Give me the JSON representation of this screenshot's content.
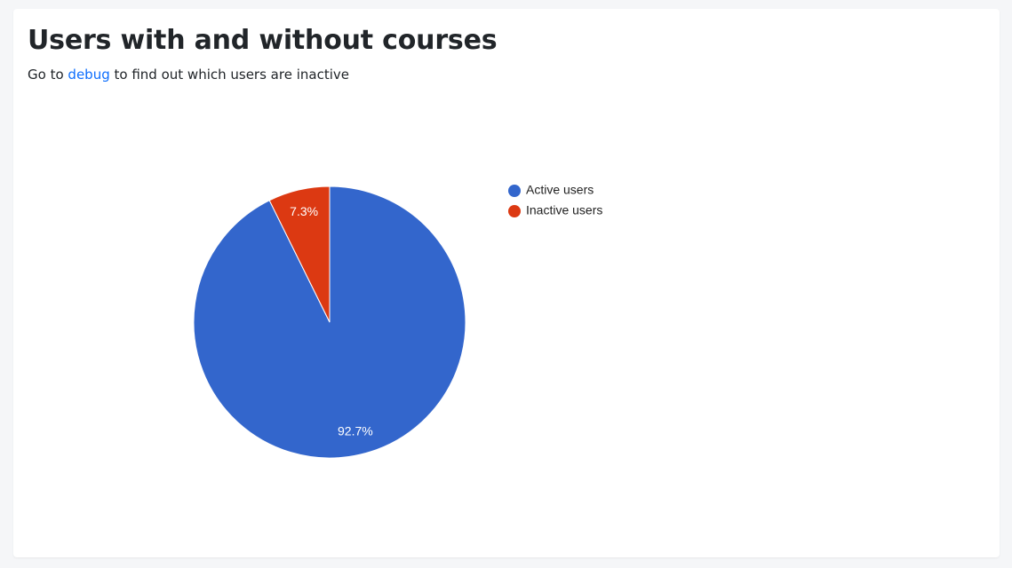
{
  "header": {
    "title": "Users with and without courses",
    "subtitle_before": "Go to",
    "subtitle_link": "debug",
    "subtitle_after": "to find out which users are inactive"
  },
  "chart_data": {
    "type": "pie",
    "categories": [
      "Active users",
      "Inactive users"
    ],
    "values": [
      92.7,
      7.3
    ],
    "value_labels": [
      "92.7%",
      "7.3%"
    ],
    "colors": [
      "#3366cc",
      "#dc3912"
    ],
    "legend": "right"
  }
}
